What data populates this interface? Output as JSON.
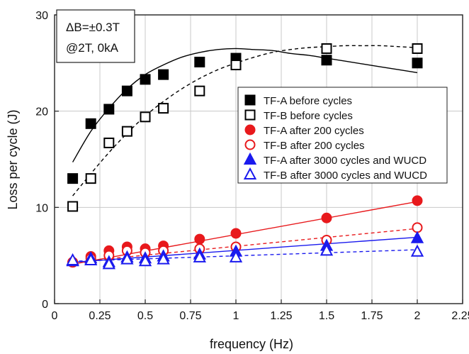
{
  "chart_data": {
    "type": "scatter",
    "xlabel": "frequency (Hz)",
    "ylabel": "Loss per cycle (J)",
    "xlim": [
      0,
      2.25
    ],
    "ylim": [
      0,
      30
    ],
    "xticks": [
      "0",
      "0.25",
      "0.5",
      "0.75",
      "1",
      "1.25",
      "1.5",
      "1.75",
      "2",
      "2.25"
    ],
    "yticks": [
      "0",
      "10",
      "20",
      "30"
    ],
    "grid": true,
    "legend_position": "right-middle",
    "annotation": [
      "ΔB=±0.3T",
      "@2T, 0kA"
    ],
    "series": [
      {
        "name": "TF-A before cycles",
        "marker": "square",
        "filled": true,
        "color": "#000000",
        "x": [
          0.1,
          0.2,
          0.3,
          0.4,
          0.5,
          0.6,
          0.8,
          1.0,
          1.5,
          2.0
        ],
        "y": [
          13.0,
          18.7,
          20.2,
          22.1,
          23.3,
          23.8,
          25.1,
          25.5,
          25.3,
          25.0
        ],
        "fit": {
          "style": "solid",
          "x": [
            0.1,
            0.2,
            0.3,
            0.4,
            0.5,
            0.6,
            0.7,
            0.8,
            0.9,
            1.0,
            1.1,
            1.2,
            1.3,
            1.4,
            1.5,
            1.6,
            1.7,
            1.8,
            1.9,
            2.0
          ],
          "y": [
            14.7,
            17.9,
            20.3,
            22.3,
            23.8,
            24.8,
            25.6,
            26.1,
            26.4,
            26.5,
            26.4,
            26.3,
            26.0,
            25.8,
            25.5,
            25.2,
            24.9,
            24.6,
            24.3,
            24.0
          ]
        }
      },
      {
        "name": "TF-B before cycles",
        "marker": "square",
        "filled": false,
        "color": "#000000",
        "x": [
          0.1,
          0.2,
          0.3,
          0.4,
          0.5,
          0.6,
          0.8,
          1.0,
          1.5,
          2.0
        ],
        "y": [
          10.1,
          13.0,
          16.7,
          17.9,
          19.4,
          20.3,
          22.1,
          24.8,
          26.5,
          26.5
        ],
        "fit": {
          "style": "dashed",
          "x": [
            0.1,
            0.2,
            0.3,
            0.4,
            0.5,
            0.6,
            0.7,
            0.8,
            0.9,
            1.0,
            1.1,
            1.2,
            1.3,
            1.4,
            1.5,
            1.6,
            1.7,
            1.8,
            1.9,
            2.0
          ],
          "y": [
            11.2,
            13.5,
            15.7,
            17.7,
            19.5,
            21.0,
            22.3,
            23.4,
            24.3,
            25.0,
            25.6,
            26.1,
            26.4,
            26.6,
            26.7,
            26.8,
            26.8,
            26.8,
            26.7,
            26.6
          ]
        }
      },
      {
        "name": "TF-A after 200 cycles",
        "marker": "circle",
        "filled": true,
        "color": "#e8191c",
        "x": [
          0.1,
          0.2,
          0.3,
          0.4,
          0.5,
          0.6,
          0.8,
          1.0,
          1.5,
          2.0
        ],
        "y": [
          4.3,
          4.9,
          5.5,
          5.9,
          5.7,
          6.0,
          6.7,
          7.3,
          8.9,
          10.7
        ],
        "fit": {
          "style": "solid",
          "x": [
            0.1,
            2.0
          ],
          "y": [
            4.1,
            10.6
          ]
        }
      },
      {
        "name": "TF-B after 200 cycles",
        "marker": "circle",
        "filled": false,
        "color": "#e8191c",
        "x": [
          0.1,
          0.2,
          0.3,
          0.4,
          0.5,
          0.6,
          0.8,
          1.0,
          1.5,
          2.0
        ],
        "y": [
          4.3,
          4.7,
          5.0,
          5.5,
          5.3,
          5.5,
          5.7,
          5.9,
          6.6,
          7.9
        ],
        "fit": {
          "style": "dashed",
          "x": [
            0.1,
            2.0
          ],
          "y": [
            4.3,
            7.8
          ]
        }
      },
      {
        "name": "TF-A after 3000 cycles and WUCD",
        "marker": "triangle",
        "filled": true,
        "color": "#1a1aee",
        "x": [
          0.1,
          0.2,
          0.3,
          0.4,
          0.5,
          0.6,
          0.8,
          1.0,
          1.5,
          2.0
        ],
        "y": [
          4.4,
          4.7,
          4.3,
          4.8,
          4.7,
          4.9,
          5.1,
          5.4,
          6.0,
          6.8
        ],
        "fit": {
          "style": "solid",
          "x": [
            0.1,
            2.0
          ],
          "y": [
            4.3,
            6.9
          ]
        }
      },
      {
        "name": "TF-B after 3000 cycles and WUCD",
        "marker": "triangle",
        "filled": false,
        "color": "#1a1aee",
        "x": [
          0.1,
          0.2,
          0.3,
          0.4,
          0.5,
          0.6,
          0.8,
          1.0,
          1.5,
          2.0
        ],
        "y": [
          4.5,
          4.5,
          4.1,
          4.6,
          4.4,
          4.6,
          4.8,
          4.8,
          5.5,
          5.4
        ],
        "fit": {
          "style": "dashed",
          "x": [
            0.1,
            2.0
          ],
          "y": [
            4.4,
            5.6
          ]
        }
      }
    ]
  }
}
